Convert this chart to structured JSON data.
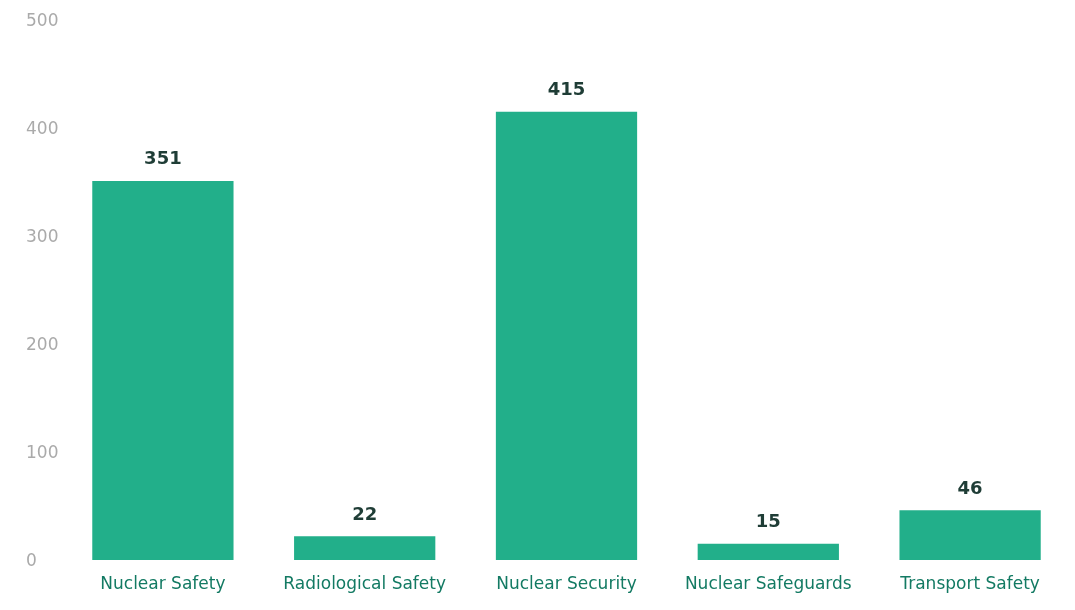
{
  "chart_data": {
    "type": "bar",
    "categories": [
      "Nuclear Safety",
      "Radiological Safety",
      "Nuclear Security",
      "Nuclear Safeguards",
      "Transport Safety"
    ],
    "values": [
      351,
      22,
      415,
      15,
      46
    ],
    "color": "#22af8a",
    "ylim": [
      0,
      500
    ],
    "yticks": [
      0,
      100,
      200,
      300,
      400,
      500
    ],
    "grid": false,
    "data_labels": true
  }
}
